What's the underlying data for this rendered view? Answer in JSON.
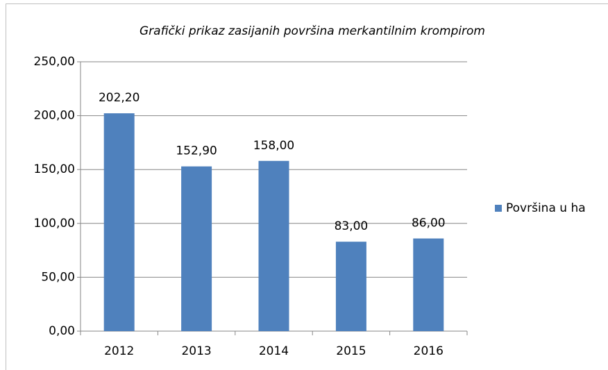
{
  "chart_data": {
    "type": "bar",
    "title": "Grafički prikaz zasijanih površina merkantilnim krompirom",
    "categories": [
      "2012",
      "2013",
      "2014",
      "2015",
      "2016"
    ],
    "series": [
      {
        "name": "Površina u ha",
        "color": "#4f81bd",
        "values": [
          202.2,
          152.9,
          158,
          83,
          86
        ],
        "value_labels": [
          "202,20",
          "152,90",
          "158,00",
          "83,00",
          "86,00"
        ]
      }
    ],
    "ylim": [
      0,
      250
    ],
    "yticks": [
      {
        "value": 0,
        "label": "0,00"
      },
      {
        "value": 50,
        "label": "50,00"
      },
      {
        "value": 100,
        "label": "100,00"
      },
      {
        "value": 150,
        "label": "150,00"
      },
      {
        "value": 200,
        "label": "200,00"
      },
      {
        "value": 250,
        "label": "250,00"
      }
    ],
    "grid": true,
    "legend": "right"
  }
}
